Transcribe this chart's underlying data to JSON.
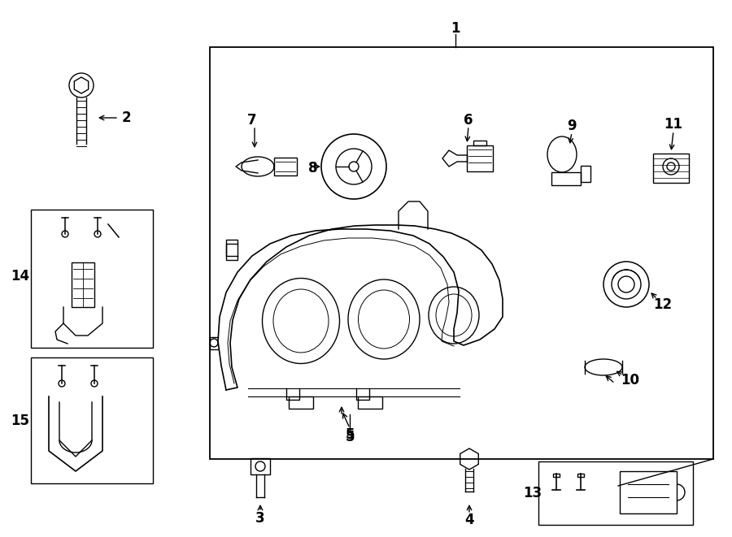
{
  "bg_color": "#ffffff",
  "line_color": "#000000",
  "lw": 1.0,
  "fig_w": 9.0,
  "fig_h": 6.61,
  "dpi": 100
}
